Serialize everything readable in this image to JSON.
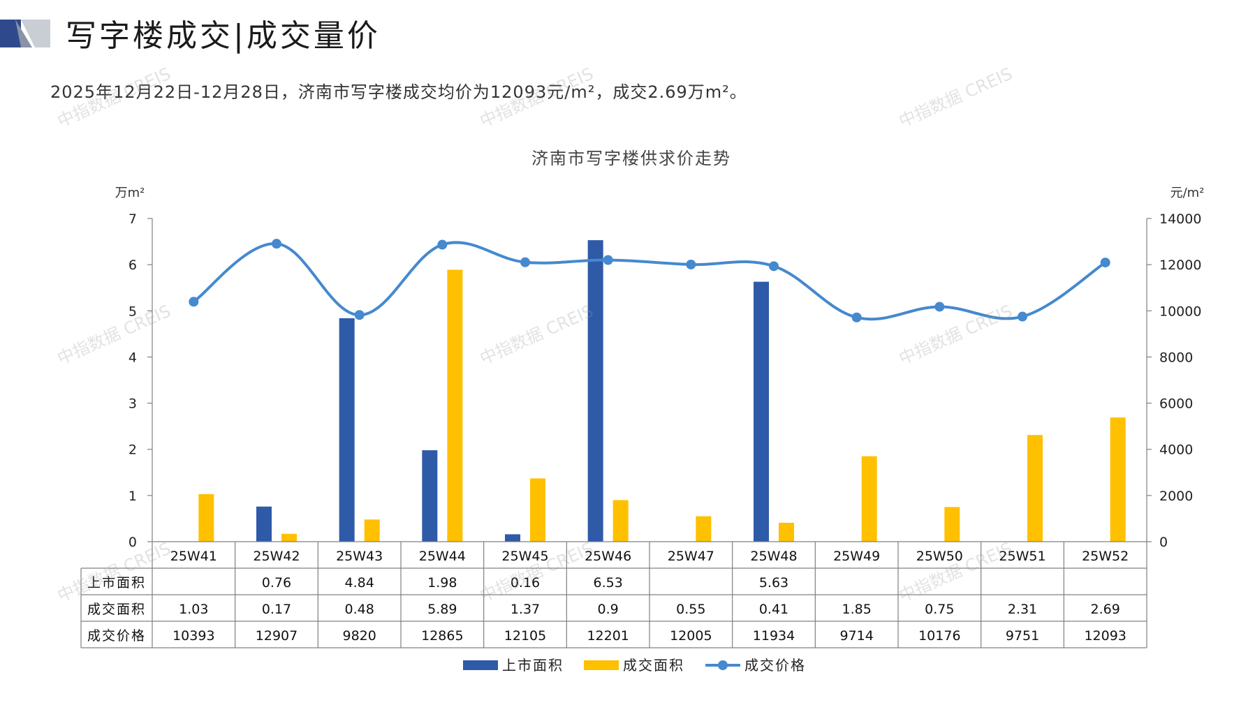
{
  "header": {
    "title": "写字楼成交|成交量价",
    "summary": "2025年12月22日-12月28日，济南市写字楼成交均价为12093元/m²，成交2.69万m²。"
  },
  "watermark_text": "中指数据 CREIS",
  "colors": {
    "listed": "#2e5aa8",
    "traded": "#ffc000",
    "price": "#4589cf",
    "grid": "#808080",
    "logo_dark": "#2f4a8c",
    "logo_light": "#c9cdd4"
  },
  "chart_data": {
    "type": "bar",
    "title": "济南市写字楼供求价走势",
    "ylabel_left": "万m²",
    "ylabel_right": "元/m²",
    "ylim_left": [
      0,
      7
    ],
    "ylim_right": [
      0,
      14000
    ],
    "yticks_left": [
      0,
      1,
      2,
      3,
      4,
      5,
      6,
      7
    ],
    "yticks_right": [
      0,
      2000,
      4000,
      6000,
      8000,
      10000,
      12000,
      14000
    ],
    "categories": [
      "25W41",
      "25W42",
      "25W43",
      "25W44",
      "25W45",
      "25W46",
      "25W47",
      "25W48",
      "25W49",
      "25W50",
      "25W51",
      "25W52"
    ],
    "series": [
      {
        "name": "上市面积",
        "type": "bar",
        "axis": "left",
        "values": [
          null,
          0.76,
          4.84,
          1.98,
          0.16,
          6.53,
          null,
          5.63,
          null,
          null,
          null,
          null
        ]
      },
      {
        "name": "成交面积",
        "type": "bar",
        "axis": "left",
        "values": [
          1.03,
          0.17,
          0.48,
          5.89,
          1.37,
          0.9,
          0.55,
          0.41,
          1.85,
          0.75,
          2.31,
          2.69
        ]
      },
      {
        "name": "成交价格",
        "type": "line",
        "axis": "right",
        "values": [
          10393,
          12907,
          9820,
          12865,
          12105,
          12201,
          12005,
          11934,
          9714,
          10176,
          9751,
          12093
        ]
      }
    ],
    "table_rows": [
      {
        "label": "上市面积",
        "cells": [
          "",
          "0.76",
          "4.84",
          "1.98",
          "0.16",
          "6.53",
          "",
          "5.63",
          "",
          "",
          "",
          ""
        ]
      },
      {
        "label": "成交面积",
        "cells": [
          "1.03",
          "0.17",
          "0.48",
          "5.89",
          "1.37",
          "0.9",
          "0.55",
          "0.41",
          "1.85",
          "0.75",
          "2.31",
          "2.69"
        ]
      },
      {
        "label": "成交价格",
        "cells": [
          "10393",
          "12907",
          "9820",
          "12865",
          "12105",
          "12201",
          "12005",
          "11934",
          "9714",
          "10176",
          "9751",
          "12093"
        ]
      }
    ],
    "legend_position": "bottom-center",
    "grid": false
  }
}
